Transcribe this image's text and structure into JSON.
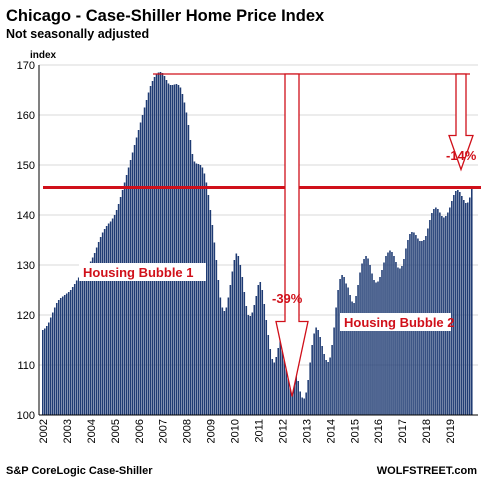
{
  "chart_data": {
    "type": "bar",
    "title": "Chicago - Case-Shiller Home Price Index",
    "subtitle": "Not seasonally adjusted",
    "ylabel": "index",
    "ylim": [
      100,
      170
    ],
    "yticks": [
      100,
      110,
      120,
      130,
      140,
      150,
      160,
      170
    ],
    "xlabels": [
      "2002",
      "2003",
      "2004",
      "2005",
      "2006",
      "2007",
      "2008",
      "2009",
      "2010",
      "2011",
      "2012",
      "2013",
      "2014",
      "2015",
      "2016",
      "2017",
      "2018",
      "2019"
    ],
    "x_start": "2002-01",
    "frequency": "monthly",
    "grid": true,
    "bar_color": "#1f3b73",
    "values": [
      117,
      117.3,
      117.8,
      118.5,
      119.5,
      120.5,
      121.5,
      122.4,
      123,
      123.4,
      123.7,
      124,
      124.3,
      124.6,
      125,
      125.6,
      126.2,
      126.9,
      127.5,
      128,
      128.4,
      128.8,
      129.3,
      130,
      130.7,
      131.5,
      132.4,
      133.5,
      134.6,
      135.6,
      136.5,
      137.2,
      137.8,
      138.3,
      138.7,
      139.3,
      140,
      141,
      142.2,
      143.6,
      145,
      146.5,
      148,
      149.5,
      151,
      152.5,
      154,
      155.5,
      157,
      158.5,
      160,
      161.5,
      163,
      164.5,
      165.8,
      166.8,
      167.6,
      168.2,
      168.5,
      168.6,
      168.4,
      167.8,
      167,
      166.3,
      166,
      166,
      166.1,
      166.2,
      166,
      165.5,
      164.2,
      162.5,
      160.5,
      158,
      155,
      152.2,
      150.7,
      150.3,
      150.2,
      150,
      149.5,
      148.3,
      146.5,
      144,
      141,
      138,
      134.5,
      131,
      127,
      123.5,
      121.5,
      120.8,
      121.5,
      123.5,
      126,
      128.7,
      131,
      132.3,
      131.8,
      130,
      127.6,
      124.6,
      121.8,
      120,
      119.8,
      120.5,
      122,
      123.8,
      126,
      126.6,
      125,
      122.2,
      119,
      116,
      113.2,
      111.2,
      110.5,
      111.6,
      113.4,
      115.4,
      117.4,
      118.4,
      119,
      118.5,
      117.2,
      115,
      112.5,
      109.5,
      106.8,
      104.7,
      103.5,
      103.3,
      104.5,
      107,
      110.5,
      114,
      116.3,
      117.5,
      117,
      115.6,
      113.8,
      112.2,
      111,
      110.6,
      111.5,
      114,
      117.5,
      121.5,
      125,
      127.2,
      128,
      127.6,
      126.3,
      125.5,
      124,
      122.7,
      122.4,
      123.8,
      126,
      128.5,
      130.3,
      131.2,
      131.8,
      131.3,
      130,
      128.3,
      127,
      126.5,
      126.7,
      127.6,
      129,
      130.5,
      131.8,
      132.5,
      132.9,
      132.6,
      131.8,
      130.6,
      129.5,
      129.3,
      129.8,
      131.2,
      133.3,
      135,
      136.2,
      136.6,
      136.5,
      136,
      135.3,
      134.8,
      134.8,
      135,
      135.8,
      137.3,
      139,
      140.4,
      141.2,
      141.5,
      141.2,
      140.5,
      139.8,
      139.5,
      139.8,
      140.5,
      141.5,
      142.8,
      144,
      144.8,
      145,
      144.6,
      143.8,
      143,
      142.4,
      142.5,
      143.5,
      145.5
    ],
    "annotations": {
      "bubble1": "Housing Bubble 1",
      "bubble2": "Housing Bubble 2",
      "drop_pct": "-39%",
      "recent_pct": "-14%",
      "peak_level": 168.6,
      "current_level": 145.5,
      "trough_level": 103.3
    },
    "source": "S&P CoreLogic Case-Shiller",
    "brand": "WOLFSTREET.com"
  }
}
